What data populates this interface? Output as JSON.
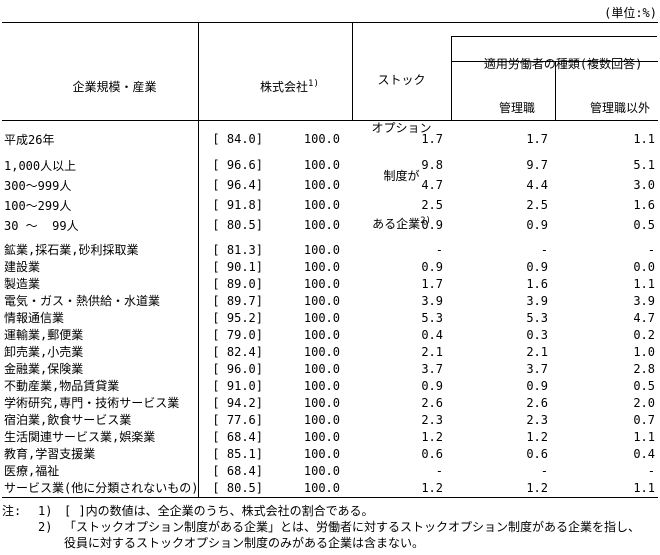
{
  "unit_label": "(単位:%)",
  "table": {
    "header": {
      "col_category": "企業規模・産業",
      "col_company": "株式会社",
      "col_company_sup": "1)",
      "col_stock_option_lines": [
        "ストック",
        "オプション",
        "制度が",
        "ある企業"
      ],
      "col_stock_option_sup": "2)",
      "col_applied_workers": "適用労働者の種類(複数回答)",
      "col_managers": "管理職",
      "col_non_managers": "管理職以外"
    },
    "rows": [
      {
        "group": "year",
        "label": "平成26年",
        "bracket": "[ 84.0]",
        "total": "100.0",
        "stock_option": "1.7",
        "managers": "1.7",
        "non_managers": "1.1"
      },
      {
        "group": "size",
        "label": "1,000人以上",
        "bracket": "[ 96.6]",
        "total": "100.0",
        "stock_option": "9.8",
        "managers": "9.7",
        "non_managers": "5.1"
      },
      {
        "group": "size",
        "label": "300～999人",
        "bracket": "[ 96.4]",
        "total": "100.0",
        "stock_option": "4.7",
        "managers": "4.4",
        "non_managers": "3.0"
      },
      {
        "group": "size",
        "label": "100～299人",
        "bracket": "[ 91.8]",
        "total": "100.0",
        "stock_option": "2.5",
        "managers": "2.5",
        "non_managers": "1.6"
      },
      {
        "group": "size",
        "label": "30 ～  99人",
        "bracket": "[ 80.5]",
        "total": "100.0",
        "stock_option": "0.9",
        "managers": "0.9",
        "non_managers": "0.5"
      },
      {
        "group": "industry",
        "label": "鉱業,採石業,砂利採取業",
        "bracket": "[ 81.3]",
        "total": "100.0",
        "stock_option": "-",
        "managers": "-",
        "non_managers": "-"
      },
      {
        "group": "industry",
        "label": "建設業",
        "bracket": "[ 90.1]",
        "total": "100.0",
        "stock_option": "0.9",
        "managers": "0.9",
        "non_managers": "0.0"
      },
      {
        "group": "industry",
        "label": "製造業",
        "bracket": "[ 89.0]",
        "total": "100.0",
        "stock_option": "1.7",
        "managers": "1.6",
        "non_managers": "1.1"
      },
      {
        "group": "industry",
        "label": "電気・ガス・熱供給・水道業",
        "bracket": "[ 89.7]",
        "total": "100.0",
        "stock_option": "3.9",
        "managers": "3.9",
        "non_managers": "3.9"
      },
      {
        "group": "industry",
        "label": "情報通信業",
        "bracket": "[ 95.2]",
        "total": "100.0",
        "stock_option": "5.3",
        "managers": "5.3",
        "non_managers": "4.7"
      },
      {
        "group": "industry",
        "label": "運輸業,郵便業",
        "bracket": "[ 79.0]",
        "total": "100.0",
        "stock_option": "0.4",
        "managers": "0.3",
        "non_managers": "0.2"
      },
      {
        "group": "industry",
        "label": "卸売業,小売業",
        "bracket": "[ 82.4]",
        "total": "100.0",
        "stock_option": "2.1",
        "managers": "2.1",
        "non_managers": "1.0"
      },
      {
        "group": "industry",
        "label": "金融業,保険業",
        "bracket": "[ 96.0]",
        "total": "100.0",
        "stock_option": "3.7",
        "managers": "3.7",
        "non_managers": "2.8"
      },
      {
        "group": "industry",
        "label": "不動産業,物品賃貸業",
        "bracket": "[ 91.0]",
        "total": "100.0",
        "stock_option": "0.9",
        "managers": "0.9",
        "non_managers": "0.5"
      },
      {
        "group": "industry",
        "label": "学術研究,専門・技術サービス業",
        "bracket": "[ 94.2]",
        "total": "100.0",
        "stock_option": "2.6",
        "managers": "2.6",
        "non_managers": "2.0"
      },
      {
        "group": "industry",
        "label": "宿泊業,飲食サービス業",
        "bracket": "[ 77.6]",
        "total": "100.0",
        "stock_option": "2.3",
        "managers": "2.3",
        "non_managers": "0.7"
      },
      {
        "group": "industry",
        "label": "生活関連サービス業,娯楽業",
        "bracket": "[ 68.4]",
        "total": "100.0",
        "stock_option": "1.2",
        "managers": "1.2",
        "non_managers": "1.1"
      },
      {
        "group": "industry",
        "label": "教育,学習支援業",
        "bracket": "[ 85.1]",
        "total": "100.0",
        "stock_option": "0.6",
        "managers": "0.6",
        "non_managers": "0.4"
      },
      {
        "group": "industry",
        "label": "医療,福祉",
        "bracket": "[ 68.4]",
        "total": "100.0",
        "stock_option": "-",
        "managers": "-",
        "non_managers": "-"
      },
      {
        "group": "industry",
        "label": "サービス業(他に分類されないもの)",
        "bracket": "[ 80.5]",
        "total": "100.0",
        "stock_option": "1.2",
        "managers": "1.2",
        "non_managers": "1.1"
      }
    ]
  },
  "notes": {
    "label": "注:",
    "items": [
      {
        "num": "1)",
        "line1": "[ ]内の数値は、全企業のうち、株式会社の割合である。",
        "line2": ""
      },
      {
        "num": "2)",
        "line1": "「ストックオプション制度がある企業」とは、労働者に対するストックオプション制度がある企業を指し、",
        "line2": "役員に対するストックオプション制度のみがある企業は含まない。"
      }
    ]
  }
}
